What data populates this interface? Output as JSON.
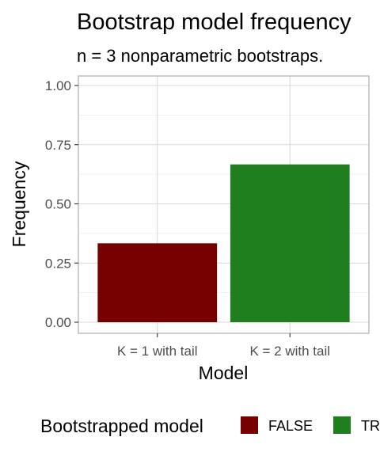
{
  "chart_data": {
    "type": "bar",
    "title": "Bootstrap model frequency",
    "subtitle": "n = 3 nonparametric bootstraps.",
    "xlabel": "Model",
    "ylabel": "Frequency",
    "categories": [
      "K = 1 with tail",
      "K = 2 with tail"
    ],
    "values": [
      0.3333,
      0.6667
    ],
    "fill_groups": [
      "FALSE",
      "TRUE"
    ],
    "ylim": [
      0,
      1
    ],
    "yticks": [
      "0.00",
      "0.25",
      "0.50",
      "0.75",
      "1.00"
    ],
    "grid": true,
    "legend": {
      "title": "Bootstrapped model",
      "position": "bottom",
      "entries": [
        {
          "label": "FALSE",
          "color": "#760000"
        },
        {
          "label": "TRUE",
          "color": "#1f7f1f"
        }
      ]
    }
  }
}
